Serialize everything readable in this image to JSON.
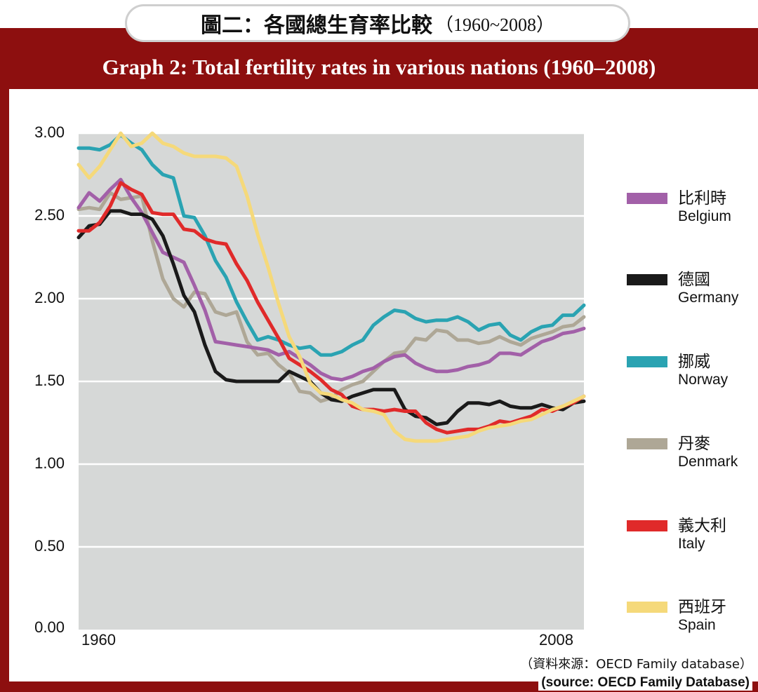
{
  "header": {
    "title_zh": "圖二：各國總生育率比較",
    "title_zh_years": "（1960~2008）",
    "title_en": "Graph 2:  Total fertility rates in various nations (1960–2008)"
  },
  "source": {
    "zh": "（資料來源：OECD Family database）",
    "en": "(source: OECD Family Database)"
  },
  "chart_data": {
    "type": "line",
    "title": "Graph 2:  Total fertility rates in various nations (1960–2008)",
    "xlabel": "",
    "ylabel": "",
    "xlim": [
      1960,
      2008
    ],
    "ylim": [
      0,
      3.0
    ],
    "x_tick_labels": [
      "1960",
      "2008"
    ],
    "y_ticks": [
      0,
      0.5,
      1.0,
      1.5,
      2.0,
      2.5,
      3.0
    ],
    "y_tick_labels": [
      "0.00",
      "0.50",
      "1.00",
      "1.50",
      "2.00",
      "2.50",
      "3.00"
    ],
    "grid": "horizontal",
    "legend_position": "right",
    "x": [
      1960,
      1961,
      1962,
      1963,
      1964,
      1965,
      1966,
      1967,
      1968,
      1969,
      1970,
      1971,
      1972,
      1973,
      1974,
      1975,
      1976,
      1977,
      1978,
      1979,
      1980,
      1981,
      1982,
      1983,
      1984,
      1985,
      1986,
      1987,
      1988,
      1989,
      1990,
      1991,
      1992,
      1993,
      1994,
      1995,
      1996,
      1997,
      1998,
      1999,
      2000,
      2001,
      2002,
      2003,
      2004,
      2005,
      2006,
      2007,
      2008
    ],
    "series": [
      {
        "name": "比利時",
        "name_en": "Belgium",
        "color": "#a260a8",
        "values": [
          2.55,
          2.64,
          2.59,
          2.66,
          2.72,
          2.61,
          2.52,
          2.4,
          2.28,
          2.25,
          2.22,
          2.08,
          1.93,
          1.74,
          1.73,
          1.72,
          1.71,
          1.7,
          1.69,
          1.66,
          1.68,
          1.64,
          1.6,
          1.55,
          1.52,
          1.51,
          1.53,
          1.56,
          1.58,
          1.62,
          1.65,
          1.66,
          1.61,
          1.58,
          1.56,
          1.56,
          1.57,
          1.59,
          1.6,
          1.62,
          1.67,
          1.67,
          1.66,
          1.7,
          1.74,
          1.76,
          1.79,
          1.8,
          1.82
        ]
      },
      {
        "name": "德國",
        "name_en": "Germany",
        "color": "#1a1a1a",
        "values": [
          2.37,
          2.44,
          2.45,
          2.53,
          2.53,
          2.51,
          2.51,
          2.48,
          2.38,
          2.21,
          2.02,
          1.92,
          1.72,
          1.56,
          1.51,
          1.5,
          1.5,
          1.5,
          1.5,
          1.5,
          1.56,
          1.53,
          1.5,
          1.43,
          1.39,
          1.38,
          1.41,
          1.43,
          1.45,
          1.45,
          1.45,
          1.33,
          1.29,
          1.28,
          1.24,
          1.25,
          1.32,
          1.37,
          1.37,
          1.36,
          1.38,
          1.35,
          1.34,
          1.34,
          1.36,
          1.34,
          1.33,
          1.37,
          1.38
        ]
      },
      {
        "name": "挪威",
        "name_en": "Norway",
        "color": "#2aa3b2",
        "values": [
          2.91,
          2.91,
          2.9,
          2.93,
          2.99,
          2.94,
          2.9,
          2.81,
          2.75,
          2.73,
          2.5,
          2.49,
          2.38,
          2.23,
          2.13,
          1.98,
          1.86,
          1.75,
          1.77,
          1.75,
          1.72,
          1.7,
          1.71,
          1.66,
          1.66,
          1.68,
          1.72,
          1.75,
          1.84,
          1.89,
          1.93,
          1.92,
          1.88,
          1.86,
          1.87,
          1.87,
          1.89,
          1.86,
          1.81,
          1.84,
          1.85,
          1.78,
          1.75,
          1.8,
          1.83,
          1.84,
          1.9,
          1.9,
          1.96
        ]
      },
      {
        "name": "丹麥",
        "name_en": "Denmark",
        "color": "#aea796",
        "values": [
          2.54,
          2.55,
          2.54,
          2.64,
          2.6,
          2.61,
          2.62,
          2.35,
          2.12,
          2.0,
          1.95,
          2.04,
          2.03,
          1.92,
          1.9,
          1.92,
          1.74,
          1.66,
          1.67,
          1.6,
          1.55,
          1.44,
          1.43,
          1.38,
          1.4,
          1.45,
          1.48,
          1.5,
          1.56,
          1.62,
          1.67,
          1.68,
          1.76,
          1.75,
          1.81,
          1.8,
          1.75,
          1.75,
          1.73,
          1.74,
          1.77,
          1.74,
          1.72,
          1.76,
          1.78,
          1.8,
          1.83,
          1.84,
          1.89
        ]
      },
      {
        "name": "義大利",
        "name_en": "Italy",
        "color": "#e02a2a",
        "values": [
          2.41,
          2.41,
          2.46,
          2.56,
          2.7,
          2.66,
          2.63,
          2.52,
          2.51,
          2.51,
          2.42,
          2.41,
          2.36,
          2.34,
          2.33,
          2.21,
          2.11,
          1.98,
          1.87,
          1.76,
          1.64,
          1.6,
          1.56,
          1.51,
          1.45,
          1.42,
          1.35,
          1.33,
          1.33,
          1.32,
          1.33,
          1.32,
          1.32,
          1.25,
          1.21,
          1.19,
          1.2,
          1.21,
          1.21,
          1.23,
          1.26,
          1.25,
          1.27,
          1.29,
          1.33,
          1.32,
          1.35,
          1.37,
          1.41
        ]
      },
      {
        "name": "西班牙",
        "name_en": "Spain",
        "color": "#f5d97a",
        "values": [
          2.81,
          2.73,
          2.8,
          2.9,
          3.0,
          2.92,
          2.94,
          3.0,
          2.94,
          2.92,
          2.88,
          2.86,
          2.86,
          2.86,
          2.85,
          2.8,
          2.62,
          2.39,
          2.19,
          1.97,
          1.77,
          1.65,
          1.49,
          1.43,
          1.42,
          1.39,
          1.37,
          1.33,
          1.32,
          1.3,
          1.2,
          1.15,
          1.14,
          1.14,
          1.14,
          1.15,
          1.16,
          1.17,
          1.2,
          1.22,
          1.23,
          1.24,
          1.26,
          1.27,
          1.3,
          1.33,
          1.35,
          1.38,
          1.41
        ]
      }
    ]
  }
}
